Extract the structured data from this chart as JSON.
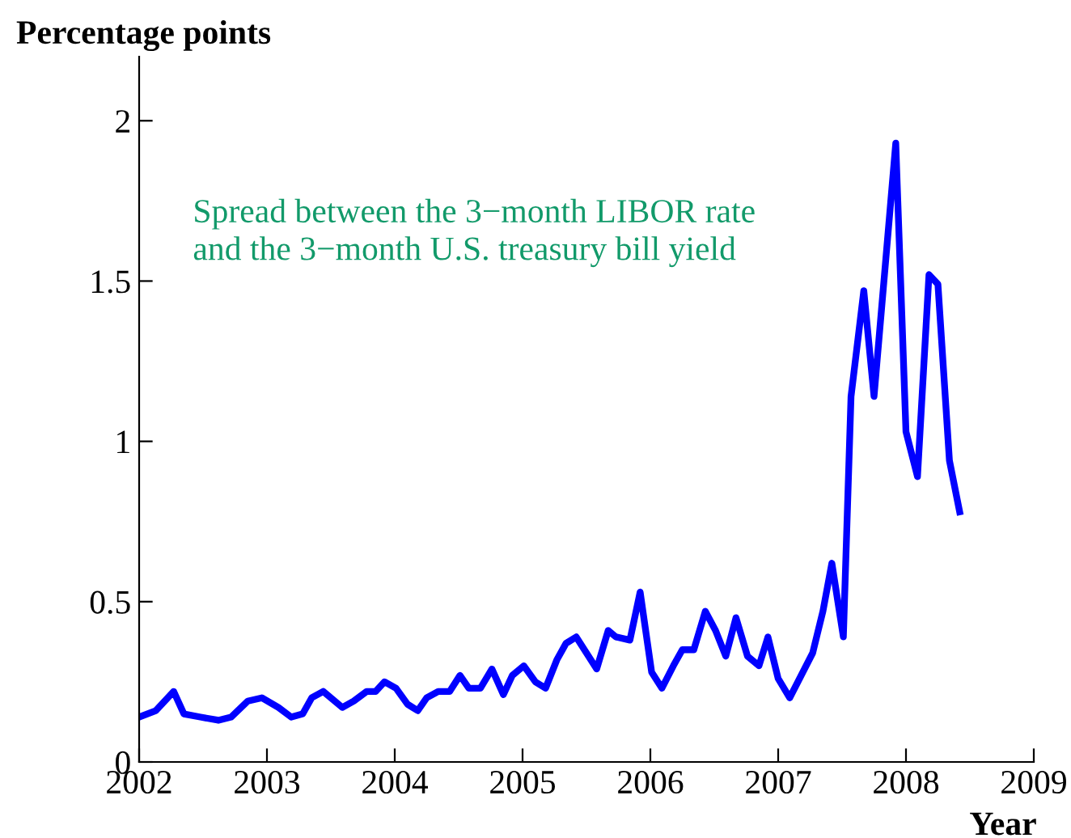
{
  "chart_data": {
    "type": "line",
    "ylabel": "Percentage points",
    "xlabel": "Year",
    "annotations": [
      "Spread between the 3−month LIBOR rate\nand the 3−month U.S. treasury bill yield"
    ],
    "xlim": [
      2002,
      2009
    ],
    "xticks": [
      2002,
      2003,
      2004,
      2005,
      2006,
      2007,
      2008,
      2009
    ],
    "ylim": [
      0,
      2.2
    ],
    "yticks": [
      0,
      0.5,
      1,
      1.5,
      2
    ],
    "grid": false,
    "legend": false,
    "marker": "none",
    "line_style": "solid",
    "series": [
      {
        "color": "#0000ff",
        "x": [
          2002.0,
          2002.13,
          2002.27,
          2002.35,
          2002.48,
          2002.62,
          2002.72,
          2002.85,
          2002.96,
          2003.09,
          2003.19,
          2003.28,
          2003.35,
          2003.44,
          2003.59,
          2003.68,
          2003.78,
          2003.85,
          2003.92,
          2004.01,
          2004.1,
          2004.18,
          2004.25,
          2004.34,
          2004.43,
          2004.51,
          2004.58,
          2004.67,
          2004.76,
          2004.85,
          2004.92,
          2005.01,
          2005.1,
          2005.18,
          2005.27,
          2005.34,
          2005.42,
          2005.58,
          2005.67,
          2005.73,
          2005.84,
          2005.92,
          2006.01,
          2006.09,
          2006.18,
          2006.25,
          2006.34,
          2006.43,
          2006.51,
          2006.59,
          2006.67,
          2006.76,
          2006.85,
          2006.92,
          2007.0,
          2007.09,
          2007.18,
          2007.27,
          2007.35,
          2007.42,
          2007.51,
          2007.57,
          2007.67,
          2007.75,
          2007.92,
          2008.0,
          2008.09,
          2008.18,
          2008.25,
          2008.34,
          2008.42
        ],
        "values": [
          0.14,
          0.16,
          0.22,
          0.15,
          0.14,
          0.13,
          0.14,
          0.19,
          0.2,
          0.17,
          0.14,
          0.15,
          0.2,
          0.22,
          0.17,
          0.19,
          0.22,
          0.22,
          0.25,
          0.23,
          0.18,
          0.16,
          0.2,
          0.22,
          0.22,
          0.27,
          0.23,
          0.23,
          0.29,
          0.21,
          0.27,
          0.3,
          0.25,
          0.23,
          0.32,
          0.37,
          0.39,
          0.29,
          0.41,
          0.39,
          0.38,
          0.53,
          0.28,
          0.23,
          0.3,
          0.35,
          0.35,
          0.47,
          0.41,
          0.33,
          0.45,
          0.33,
          0.3,
          0.39,
          0.26,
          0.2,
          0.27,
          0.34,
          0.47,
          0.62,
          0.39,
          1.14,
          1.47,
          1.14,
          1.93,
          1.03,
          0.89,
          1.52,
          1.49,
          0.94,
          0.78
        ]
      }
    ]
  }
}
